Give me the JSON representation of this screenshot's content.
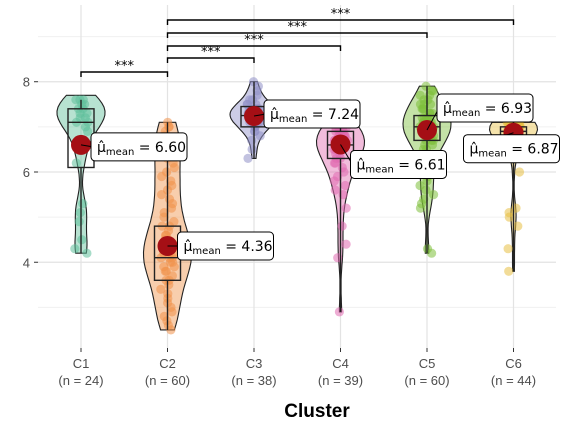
{
  "chart_data": {
    "type": "violin-box-scatter",
    "xlabel": "Cluster",
    "ylabel": "",
    "ylim": [
      2.1,
      9.7
    ],
    "yticks": [
      4,
      6,
      8
    ],
    "grid": true,
    "categories": [
      {
        "name": "C1",
        "n_label": "(n = 24)",
        "color": "#5fbf9a",
        "mean": 6.6,
        "mean_label": "6.60",
        "box": {
          "q1": 6.1,
          "median": 7.1,
          "q3": 7.4
        },
        "whisker": [
          4.2,
          7.6
        ],
        "violin": [
          4.2,
          7.7
        ],
        "points": [
          4.2,
          4.3,
          4.5,
          4.9,
          5.1,
          5.3,
          6.2,
          6.5,
          6.7,
          6.9,
          7.0,
          7.1,
          7.1,
          7.2,
          7.2,
          7.3,
          7.3,
          7.4,
          7.4,
          7.5,
          7.5,
          7.6,
          7.6,
          7.6
        ]
      },
      {
        "name": "C2",
        "n_label": "(n = 60)",
        "color": "#f0924a",
        "mean": 4.36,
        "mean_label": "4.36",
        "box": {
          "q1": 3.6,
          "median": 4.1,
          "q3": 4.8
        },
        "whisker": [
          2.5,
          7.1
        ],
        "violin": [
          2.5,
          7.1
        ],
        "points": [
          2.5,
          2.6,
          2.7,
          2.8,
          2.9,
          3.0,
          3.1,
          3.2,
          3.3,
          3.4,
          3.5,
          3.6,
          3.6,
          3.7,
          3.8,
          3.8,
          3.9,
          3.9,
          4.0,
          4.0,
          4.1,
          4.1,
          4.1,
          4.2,
          4.2,
          4.3,
          4.3,
          4.4,
          4.4,
          4.5,
          4.5,
          4.6,
          4.6,
          4.7,
          4.8,
          4.8,
          4.9,
          5.0,
          5.1,
          5.2,
          5.3,
          5.4,
          5.5,
          5.6,
          5.7,
          5.8,
          5.9,
          6.0,
          6.1,
          6.2,
          6.3,
          6.4,
          6.5,
          6.6,
          6.7,
          6.8,
          6.9,
          7.0,
          7.0,
          7.1
        ]
      },
      {
        "name": "C3",
        "n_label": "(n = 38)",
        "color": "#8f8fc7",
        "mean": 7.24,
        "mean_label": "7.24",
        "box": {
          "q1": 7.0,
          "median": 7.25,
          "q3": 7.45
        },
        "whisker": [
          6.3,
          8.0
        ],
        "violin": [
          6.3,
          8.0
        ],
        "points": [
          6.3,
          6.5,
          6.7,
          6.8,
          6.9,
          6.9,
          7.0,
          7.0,
          7.0,
          7.1,
          7.1,
          7.1,
          7.1,
          7.2,
          7.2,
          7.2,
          7.2,
          7.2,
          7.3,
          7.3,
          7.3,
          7.3,
          7.3,
          7.3,
          7.4,
          7.4,
          7.4,
          7.4,
          7.4,
          7.5,
          7.5,
          7.5,
          7.6,
          7.6,
          7.7,
          7.8,
          7.9,
          8.0
        ]
      },
      {
        "name": "C4",
        "n_label": "(n = 39)",
        "color": "#e06ab0",
        "mean": 6.61,
        "mean_label": "6.61",
        "box": {
          "q1": 6.3,
          "median": 6.6,
          "q3": 6.9
        },
        "whisker": [
          2.9,
          7.0
        ],
        "violin": [
          2.9,
          7.0
        ],
        "points": [
          2.9,
          4.1,
          4.4,
          4.8,
          5.2,
          5.5,
          5.6,
          5.7,
          5.8,
          5.9,
          6.0,
          6.1,
          6.2,
          6.2,
          6.3,
          6.3,
          6.4,
          6.4,
          6.5,
          6.5,
          6.5,
          6.6,
          6.6,
          6.6,
          6.7,
          6.7,
          6.7,
          6.8,
          6.8,
          6.8,
          6.8,
          6.9,
          6.9,
          6.9,
          6.9,
          7.0,
          7.0,
          7.0,
          7.0
        ]
      },
      {
        "name": "C5",
        "n_label": "(n = 60)",
        "color": "#7dbf3b",
        "mean": 6.93,
        "mean_label": "6.93",
        "box": {
          "q1": 6.7,
          "median": 7.0,
          "q3": 7.25
        },
        "whisker": [
          4.2,
          7.9
        ],
        "violin": [
          4.2,
          7.9
        ],
        "points": [
          4.2,
          4.3,
          5.2,
          5.3,
          5.4,
          5.5,
          5.6,
          5.7,
          5.8,
          5.9,
          6.0,
          6.1,
          6.2,
          6.3,
          6.4,
          6.5,
          6.5,
          6.6,
          6.6,
          6.7,
          6.7,
          6.7,
          6.8,
          6.8,
          6.8,
          6.8,
          6.9,
          6.9,
          6.9,
          6.9,
          7.0,
          7.0,
          7.0,
          7.0,
          7.0,
          7.1,
          7.1,
          7.1,
          7.1,
          7.1,
          7.2,
          7.2,
          7.2,
          7.2,
          7.3,
          7.3,
          7.3,
          7.4,
          7.4,
          7.4,
          7.5,
          7.5,
          7.5,
          7.6,
          7.6,
          7.7,
          7.7,
          7.8,
          7.8,
          7.9
        ]
      },
      {
        "name": "C6",
        "n_label": "(n = 44)",
        "color": "#e8c044",
        "mean": 6.87,
        "mean_label": "6.87",
        "box": {
          "q1": 6.8,
          "median": 6.9,
          "q3": 7.0
        },
        "whisker": [
          3.8,
          7.1
        ],
        "violin": [
          3.8,
          7.1
        ],
        "points": [
          3.8,
          4.3,
          4.8,
          5.0,
          5.1,
          5.2,
          6.0,
          6.4,
          6.6,
          6.7,
          6.7,
          6.8,
          6.8,
          6.8,
          6.8,
          6.9,
          6.9,
          6.9,
          6.9,
          6.9,
          6.9,
          6.9,
          6.9,
          6.9,
          7.0,
          7.0,
          7.0,
          7.0,
          7.0,
          7.0,
          7.0,
          7.0,
          7.0,
          7.0,
          7.0,
          7.0,
          7.1,
          7.1,
          7.1,
          7.1,
          7.1,
          7.1,
          7.1,
          7.1
        ]
      }
    ],
    "mean_point_color": "#a50f15",
    "mean_label_prefix": "μ̂",
    "mean_label_subscript": "mean",
    "significance": [
      {
        "from": "C1",
        "to": "C2",
        "label": "***"
      },
      {
        "from": "C2",
        "to": "C3",
        "label": "***"
      },
      {
        "from": "C2",
        "to": "C4",
        "label": "***"
      },
      {
        "from": "C2",
        "to": "C5",
        "label": "***"
      },
      {
        "from": "C2",
        "to": "C6",
        "label": "***"
      }
    ]
  }
}
